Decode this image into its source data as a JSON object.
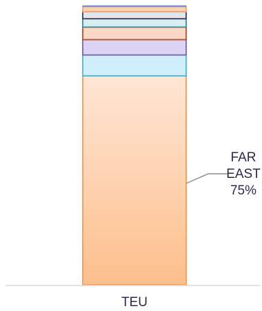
{
  "chart_data": {
    "type": "bar",
    "stacked": true,
    "percent_stacked": true,
    "categories": [
      "TEU"
    ],
    "series": [
      {
        "values": [
          75
        ],
        "fill": "#fdbf8c",
        "stroke": "#f2a467"
      },
      {
        "values": [
          7.5
        ],
        "fill": "#cfefff",
        "stroke": "#4fb7d0"
      },
      {
        "values": [
          5.5
        ],
        "fill": "#ddd4f5",
        "stroke": "#7d63b5"
      },
      {
        "values": [
          4.5
        ],
        "fill": "#fcd8c8",
        "stroke": "#b2532c"
      },
      {
        "values": [
          3.0
        ],
        "fill": "#d8eef2",
        "stroke": "#3a8f9e"
      },
      {
        "values": [
          2.5
        ],
        "fill": "#e5e5ec",
        "stroke": "#3e3e58"
      },
      {
        "values": [
          2.0
        ],
        "fill": "#fdd1b0",
        "stroke": "#f0a56e"
      }
    ],
    "annotation": {
      "series_index": 0,
      "lines": [
        "FAR",
        "EAST",
        "75%"
      ]
    },
    "ylim": [
      0,
      100
    ],
    "grid": false,
    "legend": "none"
  }
}
